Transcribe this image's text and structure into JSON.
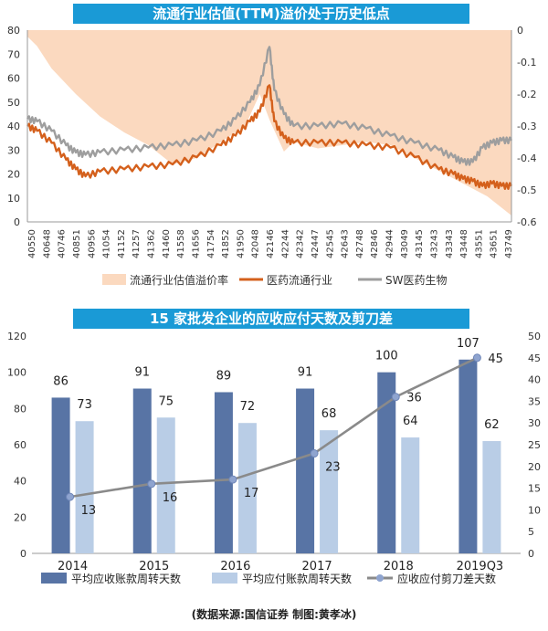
{
  "chart_data": [
    {
      "type": "line",
      "title": "流通行业估值(TTM)溢价处于历史低点",
      "x_ticks": [
        "40550",
        "40648",
        "40746",
        "40851",
        "40956",
        "41054",
        "41152",
        "41257",
        "41362",
        "41460",
        "41558",
        "41656",
        "41754",
        "41852",
        "41950",
        "42048",
        "42146",
        "42244",
        "42342",
        "42447",
        "42545",
        "42643",
        "42748",
        "42846",
        "42944",
        "43049",
        "43145",
        "43243",
        "43343",
        "43448",
        "43551",
        "43651",
        "43749"
      ],
      "left_axis": {
        "min": 0,
        "max": 80,
        "ticks": [
          0,
          10,
          20,
          30,
          40,
          50,
          60,
          70,
          80
        ]
      },
      "right_axis": {
        "min": -0.6,
        "max": 0,
        "ticks": [
          "0",
          "-0.1",
          "-0.2",
          "-0.3",
          "-0.4",
          "-0.5",
          "-0.6"
        ]
      },
      "series": [
        {
          "name": "流通行业估值溢价率",
          "axis": "right",
          "kind": "area",
          "color": "#fbd9bf",
          "points": [
            [
              0,
              -0.02
            ],
            [
              0.02,
              -0.05
            ],
            [
              0.05,
              -0.12
            ],
            [
              0.1,
              -0.2
            ],
            [
              0.15,
              -0.27
            ],
            [
              0.2,
              -0.32
            ],
            [
              0.25,
              -0.36
            ],
            [
              0.3,
              -0.42
            ],
            [
              0.35,
              -0.4
            ],
            [
              0.4,
              -0.35
            ],
            [
              0.45,
              -0.3
            ],
            [
              0.48,
              -0.2
            ],
            [
              0.5,
              -0.28
            ],
            [
              0.53,
              -0.38
            ],
            [
              0.55,
              -0.35
            ],
            [
              0.6,
              -0.37
            ],
            [
              0.65,
              -0.36
            ],
            [
              0.7,
              -0.35
            ],
            [
              0.75,
              -0.36
            ],
            [
              0.8,
              -0.4
            ],
            [
              0.85,
              -0.44
            ],
            [
              0.9,
              -0.48
            ],
            [
              0.95,
              -0.52
            ],
            [
              1,
              -0.58
            ]
          ]
        },
        {
          "name": "医药流通行业",
          "axis": "left",
          "kind": "line",
          "color": "#d4601c",
          "points": [
            [
              0,
              40
            ],
            [
              0.02,
              38
            ],
            [
              0.05,
              33
            ],
            [
              0.08,
              26
            ],
            [
              0.1,
              22
            ],
            [
              0.12,
              19
            ],
            [
              0.15,
              21
            ],
            [
              0.2,
              22
            ],
            [
              0.25,
              23
            ],
            [
              0.3,
              24
            ],
            [
              0.35,
              27
            ],
            [
              0.4,
              32
            ],
            [
              0.43,
              36
            ],
            [
              0.46,
              42
            ],
            [
              0.48,
              46
            ],
            [
              0.5,
              57
            ],
            [
              0.51,
              42
            ],
            [
              0.53,
              35
            ],
            [
              0.55,
              33
            ],
            [
              0.6,
              33
            ],
            [
              0.65,
              33
            ],
            [
              0.7,
              32
            ],
            [
              0.75,
              31
            ],
            [
              0.8,
              27
            ],
            [
              0.85,
              22
            ],
            [
              0.88,
              20
            ],
            [
              0.9,
              18
            ],
            [
              0.92,
              17
            ],
            [
              0.94,
              15
            ],
            [
              0.96,
              16
            ],
            [
              0.98,
              15
            ],
            [
              1,
              15
            ]
          ]
        },
        {
          "name": "SW医药生物",
          "axis": "left",
          "kind": "line",
          "color": "#9e9e9e",
          "points": [
            [
              0,
              43
            ],
            [
              0.02,
              42
            ],
            [
              0.05,
              38
            ],
            [
              0.08,
              32
            ],
            [
              0.1,
              29
            ],
            [
              0.12,
              28
            ],
            [
              0.15,
              29
            ],
            [
              0.2,
              30
            ],
            [
              0.25,
              31
            ],
            [
              0.3,
              32
            ],
            [
              0.35,
              34
            ],
            [
              0.4,
              38
            ],
            [
              0.43,
              43
            ],
            [
              0.46,
              50
            ],
            [
              0.48,
              57
            ],
            [
              0.5,
              73
            ],
            [
              0.51,
              55
            ],
            [
              0.53,
              45
            ],
            [
              0.55,
              40
            ],
            [
              0.6,
              40
            ],
            [
              0.65,
              41
            ],
            [
              0.7,
              39
            ],
            [
              0.75,
              36
            ],
            [
              0.8,
              33
            ],
            [
              0.85,
              30
            ],
            [
              0.88,
              27
            ],
            [
              0.9,
              25
            ],
            [
              0.92,
              25
            ],
            [
              0.94,
              31
            ],
            [
              0.96,
              33
            ],
            [
              0.98,
              34
            ],
            [
              1,
              34
            ]
          ]
        }
      ]
    },
    {
      "type": "bar",
      "title": "15 家批发企业的应收应付天数及剪刀差",
      "categories": [
        "2014",
        "2015",
        "2016",
        "2017",
        "2018",
        "2019Q3"
      ],
      "left_axis": {
        "min": 0,
        "max": 120,
        "ticks": [
          0,
          20,
          40,
          60,
          80,
          100,
          120
        ]
      },
      "right_axis": {
        "min": 0,
        "max": 50,
        "ticks": [
          0,
          5,
          10,
          15,
          20,
          25,
          30,
          35,
          40,
          45,
          50
        ]
      },
      "series": [
        {
          "name": "平均应收账款周转天数",
          "color": "#5874a5",
          "values": [
            86,
            91,
            89,
            91,
            100,
            107
          ]
        },
        {
          "name": "平均应付账款周转天数",
          "color": "#b9cde6",
          "values": [
            73,
            75,
            72,
            68,
            64,
            62
          ]
        },
        {
          "name": "应收应付剪刀差天数",
          "color": "#8a8a8a",
          "axis": "right",
          "values": [
            13,
            16,
            17,
            23,
            36,
            45
          ]
        }
      ]
    }
  ],
  "source_note": "(数据来源:国信证券 制图:黄孝冰)"
}
